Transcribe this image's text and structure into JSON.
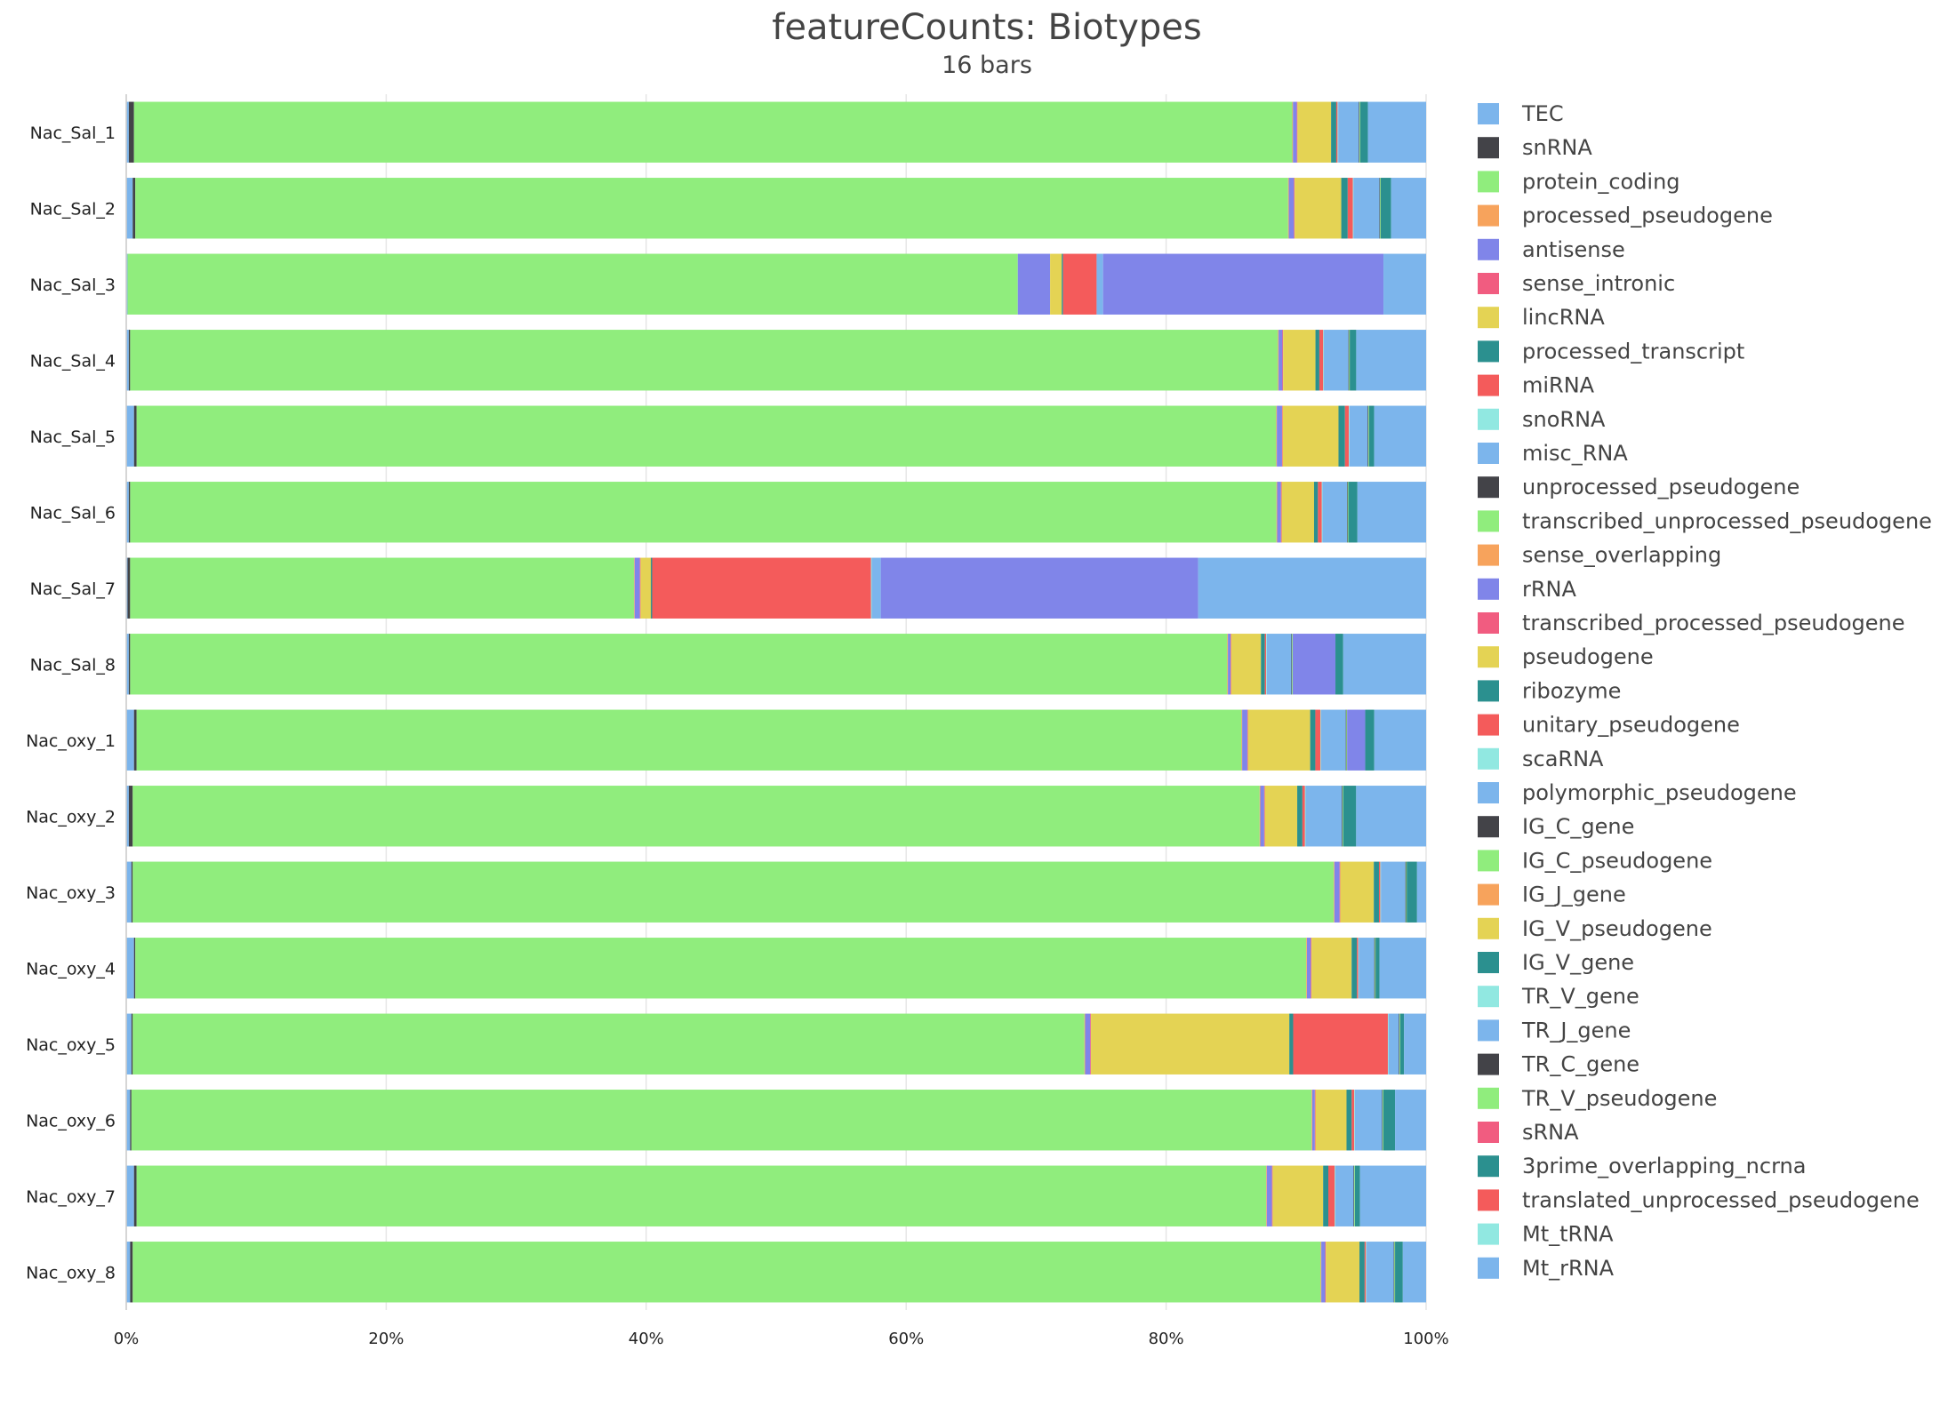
{
  "chart_data": {
    "type": "bar",
    "orientation": "horizontal",
    "stacked": "percent",
    "title": "featureCounts: Biotypes",
    "subtitle": "16 bars",
    "xlabel": "",
    "ylabel": "",
    "xlim": [
      0,
      100
    ],
    "x_ticks": [
      "0%",
      "20%",
      "40%",
      "60%",
      "80%",
      "100%"
    ],
    "grid": "vertical",
    "legend_position": "right",
    "categories": [
      "Nac_Sal_1",
      "Nac_Sal_2",
      "Nac_Sal_3",
      "Nac_Sal_4",
      "Nac_Sal_5",
      "Nac_Sal_6",
      "Nac_Sal_7",
      "Nac_Sal_8",
      "Nac_oxy_1",
      "Nac_oxy_2",
      "Nac_oxy_3",
      "Nac_oxy_4",
      "Nac_oxy_5",
      "Nac_oxy_6",
      "Nac_oxy_7",
      "Nac_oxy_8"
    ],
    "series": [
      {
        "name": "TEC",
        "color": "#7cb5ec",
        "values": [
          0.2,
          0.5,
          0.1,
          0.2,
          0.6,
          0.2,
          0.1,
          0.2,
          0.6,
          0.2,
          0.4,
          0.6,
          0.4,
          0.3,
          0.6,
          0.3
        ]
      },
      {
        "name": "snRNA",
        "color": "#434348",
        "values": [
          0.4,
          0.2,
          0,
          0.1,
          0.2,
          0.1,
          0.2,
          0.1,
          0.2,
          0.3,
          0.1,
          0.1,
          0.1,
          0.1,
          0.2,
          0.2
        ]
      },
      {
        "name": "protein_coding",
        "color": "#90ed7d",
        "values": [
          89.6,
          89.0,
          68.9,
          88.7,
          87.8,
          88.5,
          38.9,
          84.7,
          85.3,
          87.0,
          93.0,
          90.4,
          73.4,
          91.2,
          87.2,
          91.8
        ]
      },
      {
        "name": "processed_pseudogene",
        "color": "#f7a35c",
        "values": [
          0.05,
          0.05,
          0,
          0.05,
          0.05,
          0.05,
          0.05,
          0.05,
          0.05,
          0.05,
          0.05,
          0.05,
          0.05,
          0.05,
          0.05,
          0.05
        ]
      },
      {
        "name": "antisense",
        "color": "#8085e9",
        "values": [
          0.3,
          0.4,
          2.5,
          0.3,
          0.4,
          0.3,
          0.4,
          0.2,
          0.4,
          0.3,
          0.4,
          0.3,
          0.4,
          0.2,
          0.4,
          0.3
        ]
      },
      {
        "name": "sense_intronic",
        "color": "#f15c80",
        "values": [
          0.05,
          0.05,
          0,
          0.05,
          0.05,
          0.05,
          0.05,
          0.05,
          0.05,
          0.05,
          0.05,
          0.05,
          0.05,
          0.05,
          0.05,
          0.05
        ]
      },
      {
        "name": "lincRNA",
        "color": "#e4d354",
        "values": [
          2.6,
          3.6,
          0.9,
          2.5,
          4.3,
          2.5,
          0.8,
          2.3,
          4.8,
          2.5,
          2.6,
          3.1,
          15.3,
          2.4,
          3.9,
          2.6
        ]
      },
      {
        "name": "processed_transcript",
        "color": "#2b908f",
        "values": [
          0.4,
          0.5,
          0.1,
          0.3,
          0.5,
          0.3,
          0.1,
          0.3,
          0.4,
          0.4,
          0.4,
          0.4,
          0.3,
          0.4,
          0.4,
          0.4
        ]
      },
      {
        "name": "miRNA",
        "color": "#f45b5b",
        "values": [
          0.1,
          0.4,
          2.6,
          0.3,
          0.3,
          0.3,
          16.9,
          0.1,
          0.4,
          0.2,
          0.1,
          0.1,
          7.3,
          0.2,
          0.5,
          0.1
        ]
      },
      {
        "name": "snoRNA",
        "color": "#91e8e1",
        "values": [
          0.05,
          0.05,
          0,
          0.05,
          0.05,
          0.05,
          0.05,
          0.05,
          0.05,
          0.05,
          0.05,
          0.05,
          0.05,
          0.05,
          0.05,
          0.05
        ]
      },
      {
        "name": "misc_RNA",
        "color": "#7cb5ec",
        "values": [
          1.6,
          2.0,
          0.5,
          1.9,
          1.4,
          1.9,
          0.7,
          1.9,
          1.9,
          2.8,
          1.9,
          1.2,
          0.8,
          2.1,
          1.4,
          2.1
        ]
      },
      {
        "name": "unprocessed_pseudogene",
        "color": "#434348",
        "values": [
          0.05,
          0.05,
          0,
          0.05,
          0.05,
          0.05,
          0,
          0.05,
          0.05,
          0.05,
          0.05,
          0.05,
          0.05,
          0.05,
          0.05,
          0.05
        ]
      },
      {
        "name": "transcribed_unprocessed_pseudogene",
        "color": "#90ed7d",
        "values": [
          0.05,
          0.05,
          0,
          0.05,
          0.05,
          0.05,
          0,
          0.05,
          0.05,
          0.05,
          0.05,
          0.05,
          0.05,
          0.05,
          0.05,
          0.05
        ]
      },
      {
        "name": "sense_overlapping",
        "color": "#f7a35c",
        "values": [
          0,
          0,
          0,
          0,
          0,
          0,
          0,
          0,
          0,
          0,
          0,
          0,
          0,
          0,
          0,
          0
        ]
      },
      {
        "name": "rRNA",
        "color": "#8085e9",
        "values": [
          0,
          0,
          21.7,
          0,
          0,
          0,
          24.5,
          3.3,
          1.4,
          0,
          0,
          0,
          0,
          0,
          0,
          0
        ]
      },
      {
        "name": "transcribed_processed_pseudogene",
        "color": "#f15c80",
        "values": [
          0,
          0,
          0,
          0,
          0,
          0,
          0,
          0,
          0,
          0,
          0,
          0,
          0,
          0,
          0,
          0
        ]
      },
      {
        "name": "pseudogene",
        "color": "#e4d354",
        "values": [
          0,
          0,
          0,
          0,
          0,
          0,
          0,
          0,
          0,
          0,
          0,
          0,
          0,
          0,
          0,
          0
        ]
      },
      {
        "name": "ribozyme",
        "color": "#2b908f",
        "values": [
          0.6,
          0.8,
          0,
          0.5,
          0.4,
          0.7,
          0,
          0.6,
          0.7,
          1.0,
          0.8,
          0.3,
          0.3,
          0.9,
          0.4,
          0.6
        ]
      },
      {
        "name": "unitary_pseudogene",
        "color": "#f45b5b",
        "values": [
          0,
          0,
          0,
          0,
          0,
          0,
          0,
          0,
          0,
          0,
          0,
          0,
          0,
          0,
          0,
          0
        ]
      },
      {
        "name": "scaRNA",
        "color": "#91e8e1",
        "values": [
          0,
          0,
          0,
          0,
          0,
          0,
          0,
          0,
          0,
          0,
          0,
          0,
          0,
          0,
          0,
          0
        ]
      },
      {
        "name": "polymorphic_pseudogene",
        "color": "#7cb5ec",
        "values": [
          0,
          0,
          0,
          0,
          0,
          0,
          0,
          0,
          0,
          0,
          0,
          0,
          0,
          0,
          0,
          0
        ]
      },
      {
        "name": "IG_C_gene",
        "color": "#434348",
        "values": [
          0,
          0,
          0,
          0,
          0,
          0,
          0,
          0,
          0,
          0,
          0,
          0,
          0,
          0,
          0,
          0
        ]
      },
      {
        "name": "IG_C_pseudogene",
        "color": "#90ed7d",
        "values": [
          0,
          0,
          0,
          0,
          0,
          0,
          0,
          0,
          0,
          0,
          0,
          0,
          0,
          0,
          0,
          0
        ]
      },
      {
        "name": "IG_J_gene",
        "color": "#f7a35c",
        "values": [
          0,
          0,
          0,
          0,
          0,
          0,
          0,
          0,
          0,
          0,
          0,
          0,
          0,
          0,
          0,
          0
        ]
      },
      {
        "name": "IG_V_pseudogene",
        "color": "#e4d354",
        "values": [
          0,
          0,
          0,
          0,
          0,
          0,
          0,
          0,
          0,
          0,
          0,
          0,
          0,
          0,
          0,
          0
        ]
      },
      {
        "name": "IG_V_gene",
        "color": "#2b908f",
        "values": [
          0,
          0,
          0,
          0,
          0,
          0,
          0,
          0,
          0,
          0,
          0,
          0,
          0,
          0,
          0,
          0
        ]
      },
      {
        "name": "TR_V_gene",
        "color": "#91e8e1",
        "values": [
          0,
          0,
          0,
          0,
          0,
          0,
          0,
          0,
          0,
          0,
          0,
          0,
          0,
          0,
          0,
          0
        ]
      },
      {
        "name": "TR_J_gene",
        "color": "#7cb5ec",
        "values": [
          0,
          0,
          0,
          0,
          0,
          0,
          0,
          0,
          0,
          0,
          0,
          0,
          0,
          0,
          0,
          0
        ]
      },
      {
        "name": "TR_C_gene",
        "color": "#434348",
        "values": [
          0,
          0,
          0,
          0,
          0,
          0,
          0,
          0,
          0,
          0,
          0,
          0,
          0,
          0,
          0,
          0
        ]
      },
      {
        "name": "TR_V_pseudogene",
        "color": "#90ed7d",
        "values": [
          0,
          0,
          0,
          0,
          0,
          0,
          0,
          0,
          0,
          0,
          0,
          0,
          0,
          0,
          0,
          0
        ]
      },
      {
        "name": "sRNA",
        "color": "#f15c80",
        "values": [
          0,
          0,
          0,
          0,
          0,
          0,
          0,
          0,
          0,
          0,
          0,
          0,
          0,
          0,
          0,
          0
        ]
      },
      {
        "name": "3prime_overlapping_ncrna",
        "color": "#2b908f",
        "values": [
          0,
          0,
          0,
          0,
          0,
          0,
          0,
          0,
          0,
          0,
          0,
          0,
          0,
          0,
          0,
          0
        ]
      },
      {
        "name": "translated_unprocessed_pseudogene",
        "color": "#f45b5b",
        "values": [
          0,
          0,
          0,
          0,
          0,
          0,
          0,
          0,
          0,
          0,
          0,
          0,
          0,
          0,
          0,
          0
        ]
      },
      {
        "name": "Mt_tRNA",
        "color": "#91e8e1",
        "values": [
          0,
          0,
          0,
          0,
          0,
          0,
          0,
          0,
          0,
          0,
          0,
          0,
          0,
          0,
          0,
          0
        ]
      },
      {
        "name": "Mt_rRNA",
        "color": "#7cb5ec",
        "values": [
          4.5,
          2.7,
          3.3,
          5.4,
          4.0,
          5.3,
          17.6,
          6.4,
          4.0,
          5.4,
          0.7,
          3.6,
          1.7,
          2.4,
          5.1,
          1.8
        ]
      }
    ]
  }
}
